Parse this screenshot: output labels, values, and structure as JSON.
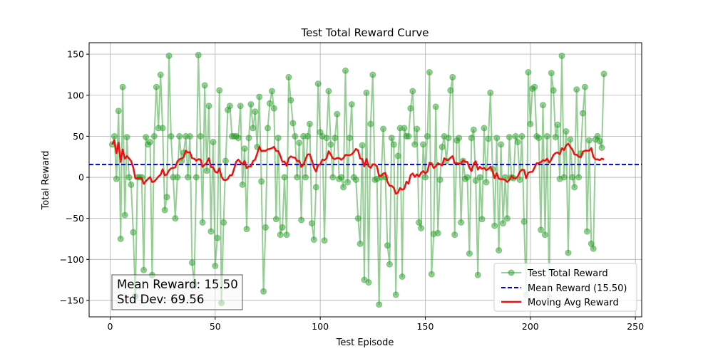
{
  "chart_data": {
    "type": "line",
    "title": "Test Total Reward Curve",
    "xlabel": "Test Episode",
    "ylabel": "Total Reward",
    "xlim": [
      -10,
      253
    ],
    "ylim": [
      -170,
      164
    ],
    "xticks": [
      0,
      50,
      100,
      150,
      200,
      250
    ],
    "yticks": [
      -150,
      -100,
      -50,
      0,
      50,
      100,
      150
    ],
    "grid": true,
    "legend_position": "lower-right",
    "mean_value": 15.5,
    "moving_avg_window": 20,
    "stats_box": {
      "mean_line": "Mean Reward: 15.50",
      "std_line": "Std Dev: 69.56"
    },
    "series": [
      {
        "name": "Test Total Reward",
        "color": "#2ca02c",
        "style": "line-markers",
        "values": [
          40,
          50,
          -2,
          81,
          -75,
          110,
          -46,
          49,
          0,
          -9,
          -67,
          -145,
          0,
          0,
          0,
          -113,
          49,
          40,
          43,
          -119,
          50,
          110,
          60,
          125,
          60,
          -40,
          -24,
          148,
          50,
          0,
          -50,
          0,
          50,
          20,
          30,
          50,
          0,
          50,
          -104,
          -130,
          0,
          149,
          50,
          -55,
          112,
          8,
          87,
          -66,
          43,
          -108,
          -74,
          106,
          -153,
          -55,
          20,
          82,
          87,
          50,
          50,
          50,
          48,
          87,
          -9,
          35,
          -63,
          48,
          89,
          60,
          80,
          37,
          98,
          -5,
          -139,
          -61,
          60,
          90,
          105,
          84,
          -51,
          48,
          -70,
          -61,
          0,
          -70,
          122,
          94,
          66,
          50,
          0,
          42,
          -52,
          50,
          0,
          50,
          65,
          -56,
          -76,
          -12,
          114,
          55,
          50,
          -77,
          48,
          105,
          40,
          0,
          48,
          77,
          -2,
          0,
          -12,
          130,
          -6,
          48,
          89,
          0,
          -3,
          -50,
          -81,
          39,
          -125,
          103,
          -128,
          65,
          125,
          -3,
          -2,
          -155,
          0,
          59,
          0,
          -83,
          -106,
          48,
          40,
          -143,
          26,
          60,
          -121,
          60,
          50,
          50,
          84,
          105,
          40,
          59,
          -55,
          -62,
          40,
          0,
          50,
          128,
          -118,
          -69,
          86,
          -68,
          -3,
          37,
          50,
          20,
          48,
          106,
          122,
          -70,
          45,
          48,
          -55,
          20,
          -2,
          0,
          -93,
          48,
          58,
          -4,
          -119,
          0,
          -51,
          60,
          -6,
          47,
          103,
          10,
          -59,
          48,
          -89,
          40,
          -56,
          0,
          -50,
          49,
          0,
          -1,
          50,
          43,
          -3,
          50,
          -54,
          -143,
          128,
          65,
          108,
          110,
          50,
          48,
          -64,
          88,
          -70,
          50,
          -146,
          127,
          106,
          49,
          64,
          -2,
          148,
          0,
          56,
          -92,
          46,
          0,
          -12,
          107,
          0,
          29,
          78,
          110,
          -66,
          45,
          -81,
          -87,
          46,
          50,
          44,
          36,
          126
        ]
      },
      {
        "name": "Mean Reward (15.50)",
        "color": "#0000cc",
        "style": "dashed"
      },
      {
        "name": "Moving Avg Reward",
        "color": "#ee1111",
        "style": "line"
      }
    ]
  }
}
